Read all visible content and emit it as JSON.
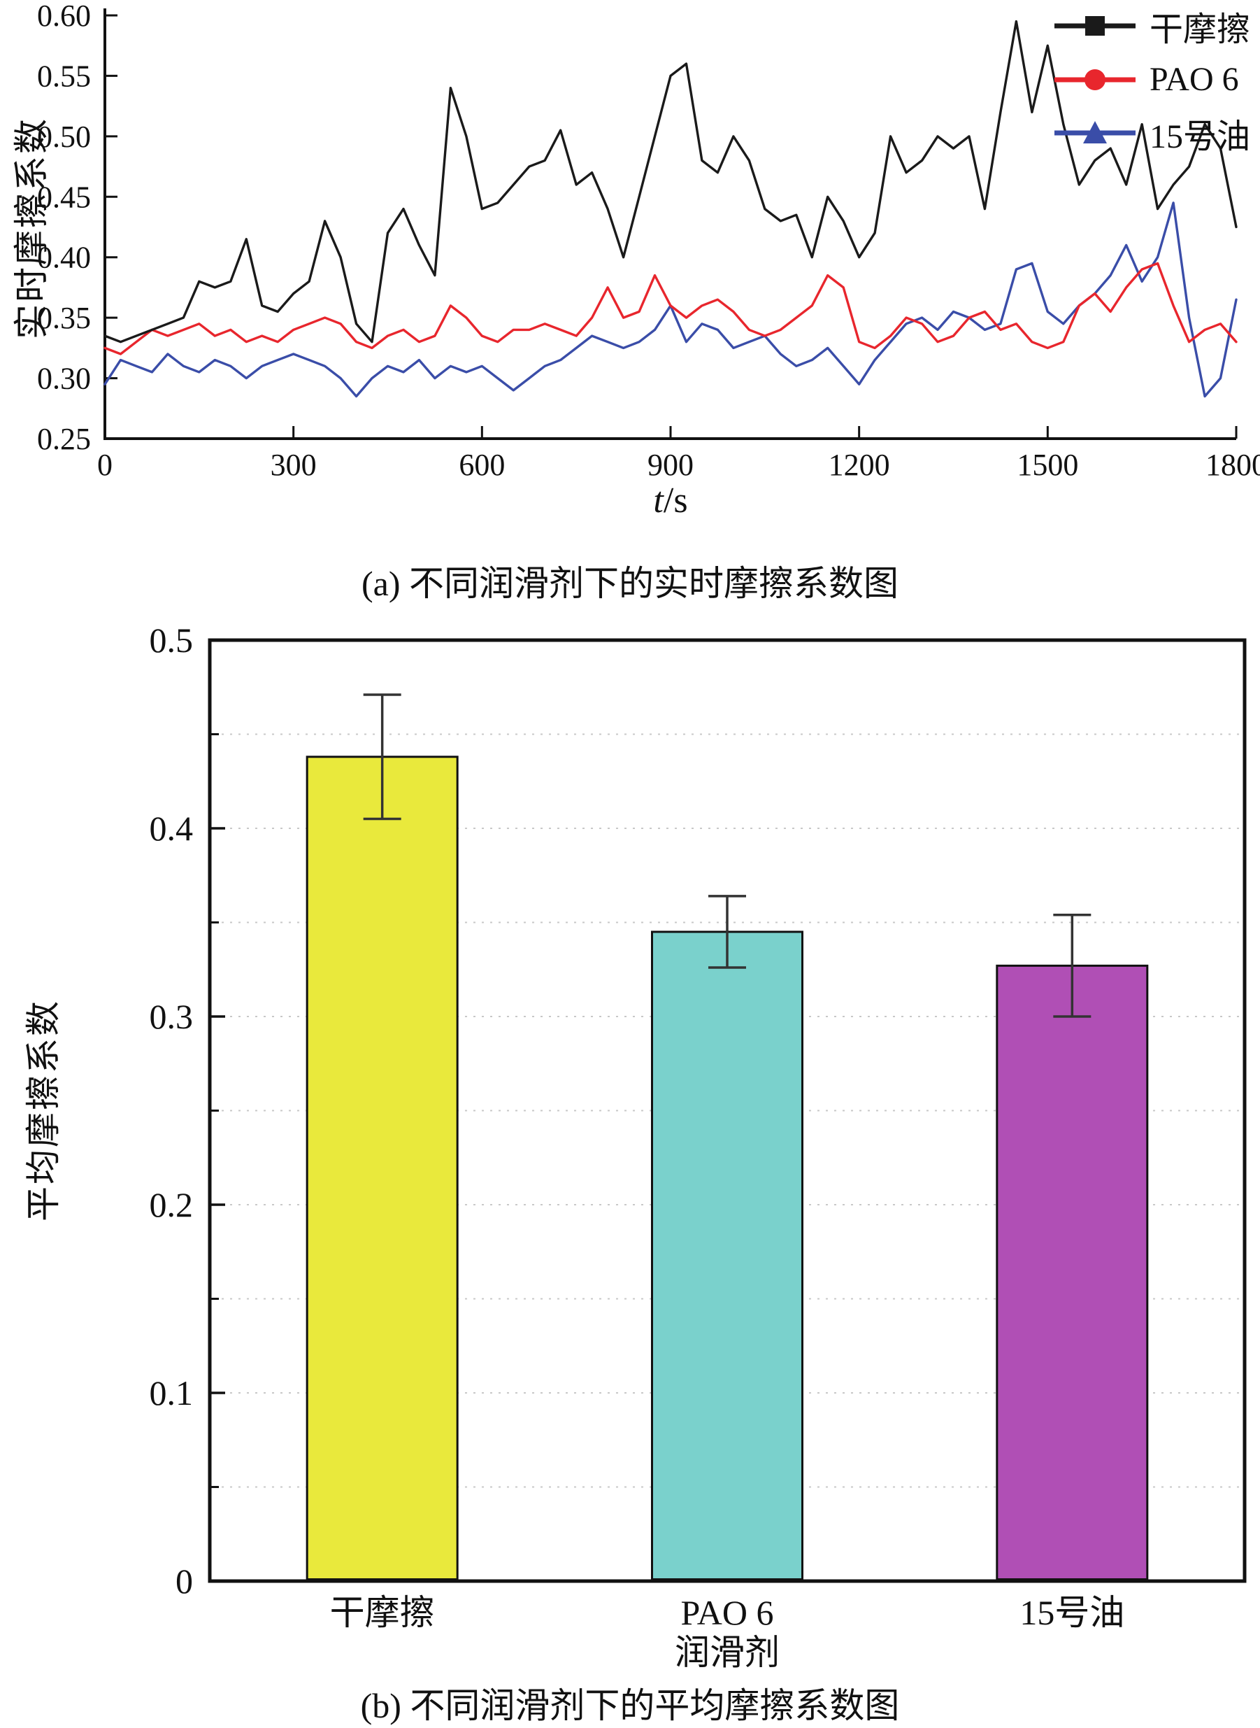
{
  "captions": {
    "a": "(a) 不同润滑剂下的实时摩擦系数图",
    "b": "(b) 不同润滑剂下的平均摩擦系数图"
  },
  "chart_data": [
    {
      "id": "realtime-friction",
      "type": "line",
      "title": "",
      "xlabel": "t/s",
      "ylabel": "实时摩擦系数",
      "xlim": [
        0,
        1800
      ],
      "ylim": [
        0.25,
        0.6
      ],
      "xticks": [
        0,
        300,
        600,
        900,
        1200,
        1500,
        1800
      ],
      "yticks": [
        0.25,
        0.3,
        0.35,
        0.4,
        0.45,
        0.5,
        0.55,
        0.6
      ],
      "grid": false,
      "frame": "L-axes",
      "legend_position": "top-right",
      "sample_step_s": 25,
      "series": [
        {
          "id": "dry-friction",
          "name": "干摩擦",
          "color": "#1a1a1a",
          "marker": "square",
          "width": 3.4,
          "values": [
            0.335,
            0.33,
            0.335,
            0.34,
            0.345,
            0.35,
            0.38,
            0.375,
            0.38,
            0.415,
            0.36,
            0.355,
            0.37,
            0.38,
            0.43,
            0.4,
            0.345,
            0.33,
            0.42,
            0.44,
            0.41,
            0.385,
            0.54,
            0.5,
            0.44,
            0.445,
            0.46,
            0.475,
            0.48,
            0.505,
            0.46,
            0.47,
            0.44,
            0.4,
            0.45,
            0.5,
            0.55,
            0.56,
            0.48,
            0.47,
            0.5,
            0.48,
            0.44,
            0.43,
            0.435,
            0.4,
            0.45,
            0.43,
            0.4,
            0.42,
            0.5,
            0.47,
            0.48,
            0.5,
            0.49,
            0.5,
            0.44,
            0.52,
            0.595,
            0.52,
            0.575,
            0.51,
            0.46,
            0.48,
            0.49,
            0.46,
            0.51,
            0.44,
            0.46,
            0.475,
            0.51,
            0.49,
            0.425
          ]
        },
        {
          "id": "pao-6",
          "name": "PAO 6",
          "color": "#e8262d",
          "marker": "circle",
          "width": 3.4,
          "values": [
            0.325,
            0.32,
            0.33,
            0.34,
            0.335,
            0.34,
            0.345,
            0.335,
            0.34,
            0.33,
            0.335,
            0.33,
            0.34,
            0.345,
            0.35,
            0.345,
            0.33,
            0.325,
            0.335,
            0.34,
            0.33,
            0.335,
            0.36,
            0.35,
            0.335,
            0.33,
            0.34,
            0.34,
            0.345,
            0.34,
            0.335,
            0.35,
            0.375,
            0.35,
            0.355,
            0.385,
            0.36,
            0.35,
            0.36,
            0.365,
            0.355,
            0.34,
            0.335,
            0.34,
            0.35,
            0.36,
            0.385,
            0.375,
            0.33,
            0.325,
            0.335,
            0.35,
            0.345,
            0.33,
            0.335,
            0.35,
            0.355,
            0.34,
            0.345,
            0.33,
            0.325,
            0.33,
            0.36,
            0.37,
            0.355,
            0.375,
            0.39,
            0.395,
            0.36,
            0.33,
            0.34,
            0.345,
            0.33
          ]
        },
        {
          "id": "no15-oil",
          "name": "15号油",
          "color": "#3a4da8",
          "marker": "triangle",
          "width": 3.4,
          "values": [
            0.295,
            0.315,
            0.31,
            0.305,
            0.32,
            0.31,
            0.305,
            0.315,
            0.31,
            0.3,
            0.31,
            0.315,
            0.32,
            0.315,
            0.31,
            0.3,
            0.285,
            0.3,
            0.31,
            0.305,
            0.315,
            0.3,
            0.31,
            0.305,
            0.31,
            0.3,
            0.29,
            0.3,
            0.31,
            0.315,
            0.325,
            0.335,
            0.33,
            0.325,
            0.33,
            0.34,
            0.36,
            0.33,
            0.345,
            0.34,
            0.325,
            0.33,
            0.335,
            0.32,
            0.31,
            0.315,
            0.325,
            0.31,
            0.295,
            0.315,
            0.33,
            0.345,
            0.35,
            0.34,
            0.355,
            0.35,
            0.34,
            0.345,
            0.39,
            0.395,
            0.355,
            0.345,
            0.36,
            0.37,
            0.385,
            0.41,
            0.38,
            0.4,
            0.445,
            0.35,
            0.285,
            0.3,
            0.365
          ]
        }
      ]
    },
    {
      "id": "average-friction",
      "type": "bar",
      "title": "",
      "xlabel": "润滑剂",
      "ylabel": "平均摩擦系数",
      "ylim": [
        0,
        0.5
      ],
      "yticks": [
        0,
        0.1,
        0.2,
        0.3,
        0.4,
        0.5
      ],
      "grid": {
        "style": "dotted",
        "interval": 0.05,
        "orientation": "horizontal"
      },
      "frame": "box",
      "ids": [
        "dry-friction",
        "pao-6",
        "no15-oil"
      ],
      "categories": [
        "干摩擦",
        "PAO 6",
        "15号油"
      ],
      "values": [
        0.438,
        0.345,
        0.327
      ],
      "errors": [
        0.033,
        0.019,
        0.027
      ],
      "bar_colors": [
        "#e9e93c",
        "#7ad1cc",
        "#b04fb5"
      ],
      "bar_edge_color": "#111111",
      "error_bar_color": "#333333"
    }
  ]
}
